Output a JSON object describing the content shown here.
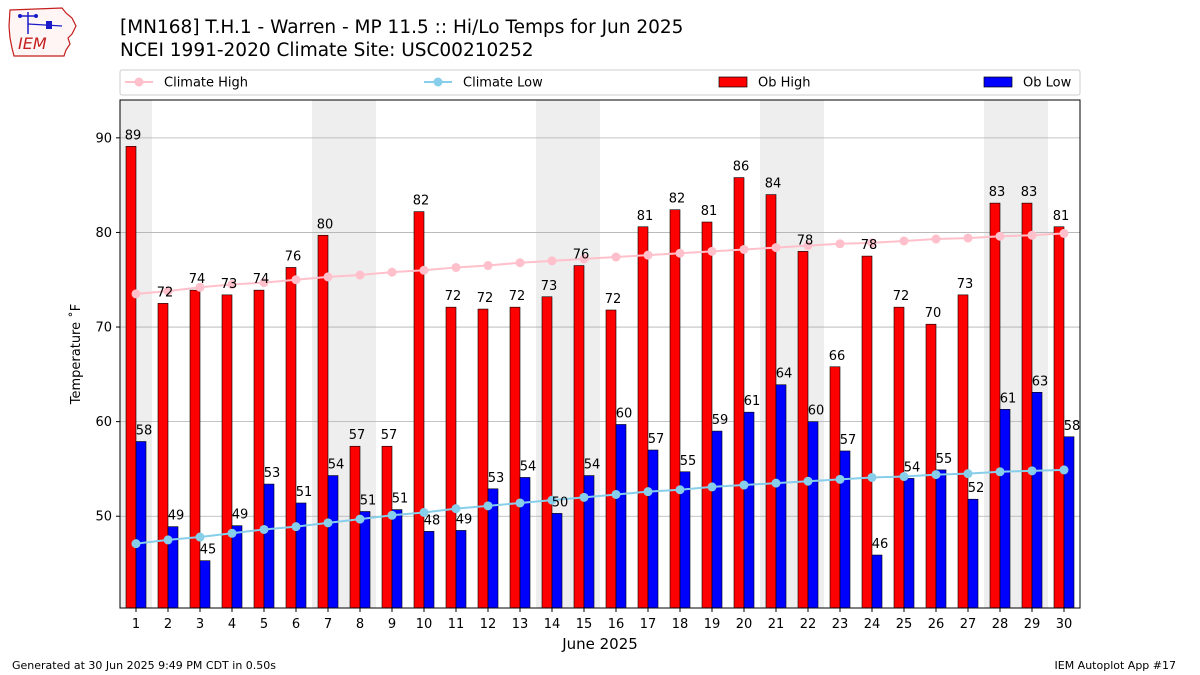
{
  "header": {
    "title_line1": "[MN168] T.H.1 - Warren - MP 11.5  :: Hi/Lo Temps for Jun 2025",
    "title_line2": "NCEI 1991-2020 Climate Site: USC00210252",
    "logo_text": "IEM"
  },
  "footer": {
    "generated": "Generated at 30 Jun 2025 9:49 PM CDT in 0.50s",
    "app": "IEM Autoplot App #17"
  },
  "chart_data": {
    "type": "bar",
    "title": "[MN168] T.H.1 - Warren - MP 11.5  :: Hi/Lo Temps for Jun 2025",
    "subtitle": "NCEI 1991-2020 Climate Site: USC00210252",
    "xlabel": "June 2025",
    "ylabel": "Temperature ˚F",
    "ylim": [
      40.3,
      94
    ],
    "yticks": [
      50,
      60,
      70,
      80,
      90
    ],
    "grid": "horizontal",
    "legend_position": "top",
    "categories": [
      "1",
      "2",
      "3",
      "4",
      "5",
      "6",
      "7",
      "8",
      "9",
      "10",
      "11",
      "12",
      "13",
      "14",
      "15",
      "16",
      "17",
      "18",
      "19",
      "20",
      "21",
      "22",
      "23",
      "24",
      "25",
      "26",
      "27",
      "28",
      "29",
      "30"
    ],
    "weekend_days": [
      1,
      7,
      8,
      14,
      15,
      21,
      22,
      28,
      29
    ],
    "series": [
      {
        "name": "Ob High",
        "kind": "bar",
        "color": "#ff0000",
        "values": [
          89.1,
          72.5,
          73.9,
          73.4,
          73.9,
          76.3,
          79.7,
          57.4,
          57.4,
          82.2,
          72.1,
          71.9,
          72.1,
          73.2,
          76.5,
          71.8,
          80.6,
          82.4,
          81.1,
          85.8,
          84.0,
          78.0,
          65.8,
          77.5,
          72.1,
          70.3,
          73.4,
          83.1,
          83.1,
          80.6
        ],
        "labels": [
          "89",
          "72",
          "74",
          "73",
          "74",
          "76",
          "80",
          "57",
          "57",
          "82",
          "72",
          "72",
          "72",
          "73",
          "76",
          "72",
          "81",
          "82",
          "81",
          "86",
          "84",
          "78",
          "66",
          "78",
          "72",
          "70",
          "73",
          "83",
          "83",
          "81"
        ]
      },
      {
        "name": "Ob Low",
        "kind": "bar",
        "color": "#0000ff",
        "values": [
          57.9,
          48.9,
          45.3,
          49.0,
          53.4,
          51.4,
          54.3,
          50.5,
          50.7,
          48.4,
          48.5,
          52.9,
          54.1,
          50.3,
          54.3,
          59.7,
          57.0,
          54.7,
          59.0,
          61.0,
          63.9,
          60.0,
          56.9,
          45.9,
          54.0,
          54.9,
          51.8,
          61.3,
          63.1,
          58.4
        ],
        "labels": [
          "58",
          "49",
          "45",
          "49",
          "53",
          "51",
          "54",
          "51",
          "51",
          "48",
          "49",
          "53",
          "54",
          "50",
          "54",
          "60",
          "57",
          "55",
          "59",
          "61",
          "64",
          "60",
          "57",
          "46",
          "54",
          "55",
          "52",
          "61",
          "63",
          "58"
        ]
      },
      {
        "name": "Climate High",
        "kind": "line",
        "color": "#ffc0cb",
        "values": [
          73.5,
          73.8,
          74.2,
          74.5,
          74.7,
          75.0,
          75.3,
          75.5,
          75.8,
          76.0,
          76.3,
          76.5,
          76.8,
          77.0,
          77.2,
          77.4,
          77.6,
          77.8,
          78.0,
          78.2,
          78.4,
          78.6,
          78.8,
          78.9,
          79.1,
          79.3,
          79.4,
          79.6,
          79.7,
          79.9
        ]
      },
      {
        "name": "Climate Low",
        "kind": "line",
        "color": "#87ceeb",
        "values": [
          47.1,
          47.5,
          47.8,
          48.2,
          48.6,
          48.9,
          49.3,
          49.7,
          50.1,
          50.4,
          50.8,
          51.1,
          51.4,
          51.7,
          52.0,
          52.3,
          52.6,
          52.8,
          53.1,
          53.3,
          53.5,
          53.7,
          53.9,
          54.1,
          54.2,
          54.4,
          54.5,
          54.7,
          54.8,
          54.9
        ]
      }
    ]
  }
}
